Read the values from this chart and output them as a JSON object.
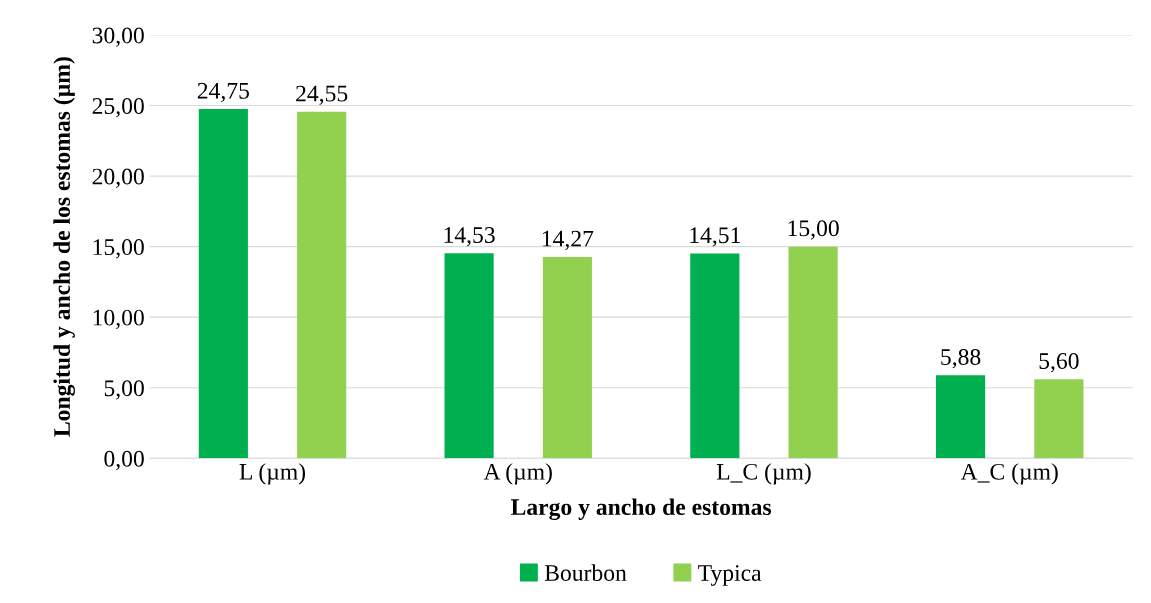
{
  "chart_data": {
    "type": "bar",
    "xlabel": "Largo y ancho de estomas",
    "ylabel": "Longitud y ancho de los estomas (µm)",
    "categories": [
      "L (µm)",
      "A (µm)",
      "L_C (µm)",
      "A_C (µm)"
    ],
    "series": [
      {
        "name": "Bourbon",
        "color": "#00b050",
        "values": [
          24.75,
          14.53,
          14.51,
          5.88
        ],
        "value_labels": [
          "24,75",
          "14,53",
          "14,51",
          "5,88"
        ]
      },
      {
        "name": "Typica",
        "color": "#92d050",
        "values": [
          24.55,
          14.27,
          15.0,
          5.6
        ],
        "value_labels": [
          "24,55",
          "14,27",
          "15,00",
          "5,60"
        ]
      }
    ],
    "ylim": [
      0,
      30
    ],
    "yticks": [
      {
        "value": 0,
        "label": "0,00"
      },
      {
        "value": 5,
        "label": "5,00"
      },
      {
        "value": 10,
        "label": "10,00"
      },
      {
        "value": 15,
        "label": "15,00"
      },
      {
        "value": 20,
        "label": "20,00"
      },
      {
        "value": 25,
        "label": "25,00"
      },
      {
        "value": 30,
        "label": "30,00"
      }
    ],
    "grid": "y",
    "legend": "bottom"
  }
}
